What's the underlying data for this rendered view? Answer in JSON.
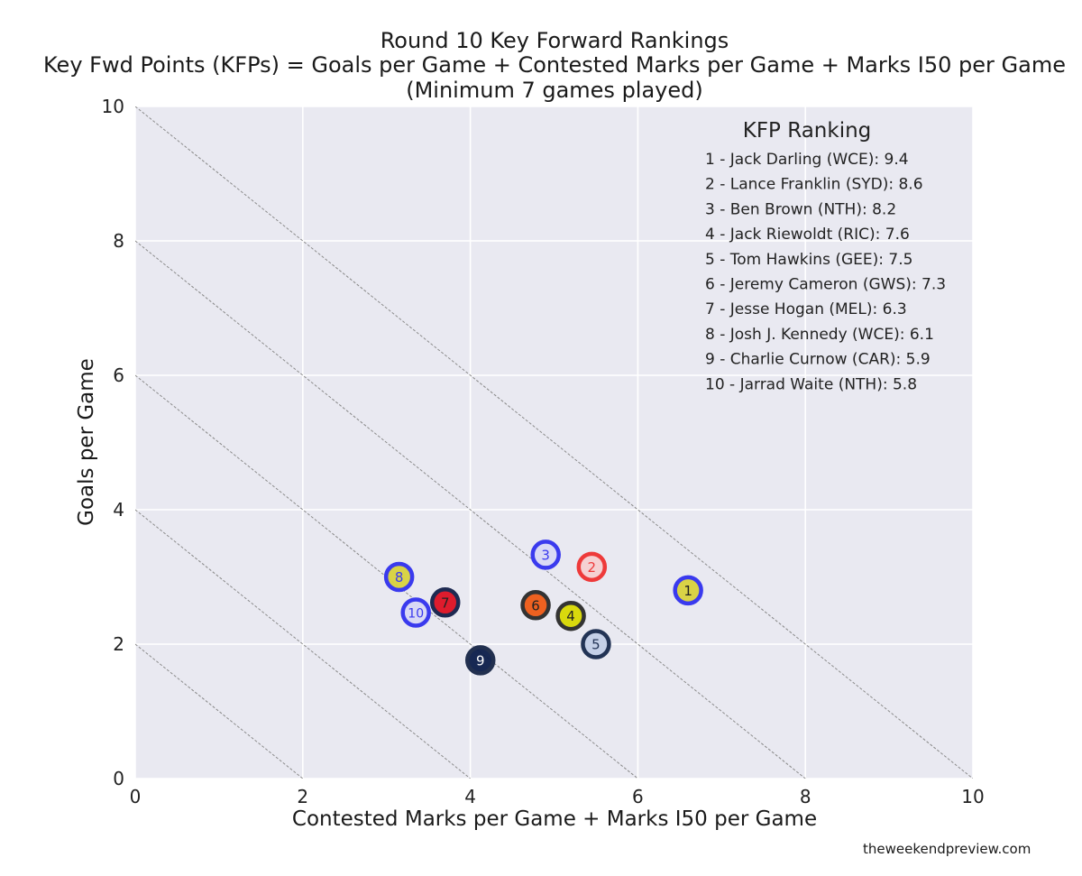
{
  "title": {
    "line1": "Round 10 Key Forward Rankings",
    "line2": "Key Fwd Points (KFPs) = Goals per Game + Contested Marks per Game + Marks I50 per Game",
    "line3": "(Minimum 7 games played)"
  },
  "source": "theweekendpreview.com",
  "chart_data": {
    "type": "scatter",
    "xlabel": "Contested Marks per Game + Marks I50 per Game",
    "ylabel": "Goals per Game",
    "xlim": [
      0,
      10
    ],
    "ylim": [
      0,
      10
    ],
    "xticks": [
      "0",
      "2",
      "4",
      "6",
      "8",
      "10"
    ],
    "yticks": [
      "0",
      "2",
      "4",
      "6",
      "8",
      "10"
    ],
    "grid": true,
    "background": "#e9e9f1",
    "reference_lines": [
      2,
      4,
      6,
      8,
      10
    ],
    "legend": {
      "title": "KFP Ranking",
      "placement": "top-right",
      "entries": [
        "1 - Jack Darling (WCE): 9.4",
        "2 - Lance Franklin (SYD): 8.6",
        "3 - Ben Brown (NTH): 8.2",
        "4 - Jack Riewoldt (RIC): 7.6",
        "5 - Tom Hawkins (GEE): 7.5",
        "6 - Jeremy Cameron (GWS): 7.3",
        "7 - Jesse Hogan (MEL): 6.3",
        "8 - Josh J. Kennedy (WCE): 6.1",
        "9 - Charlie Curnow (CAR): 5.9",
        "10 - Jarrad Waite (NTH): 5.8"
      ]
    },
    "points": [
      {
        "rank": "1",
        "x": 6.6,
        "y": 2.8,
        "fill": "#d8d23c",
        "edge": "#3a3aee",
        "text": "#222222"
      },
      {
        "rank": "2",
        "x": 5.45,
        "y": 3.15,
        "fill": "#f6d0d0",
        "edge": "#ee3a3a",
        "text": "#ee3a3a"
      },
      {
        "rank": "3",
        "x": 4.9,
        "y": 3.33,
        "fill": "#d8d8f4",
        "edge": "#3a3aee",
        "text": "#3a3aee"
      },
      {
        "rank": "4",
        "x": 5.2,
        "y": 2.42,
        "fill": "#d8d800",
        "edge": "#333333",
        "text": "#222222"
      },
      {
        "rank": "5",
        "x": 5.5,
        "y": 2.0,
        "fill": "#c2cde6",
        "edge": "#223355",
        "text": "#223355"
      },
      {
        "rank": "6",
        "x": 4.78,
        "y": 2.58,
        "fill": "#ee5a14",
        "edge": "#333333",
        "text": "#222222"
      },
      {
        "rank": "7",
        "x": 3.7,
        "y": 2.62,
        "fill": "#dd1122",
        "edge": "#1e2a52",
        "text": "#222222"
      },
      {
        "rank": "8",
        "x": 3.15,
        "y": 3.0,
        "fill": "#d8d23c",
        "edge": "#3a3aee",
        "text": "#3a3aee"
      },
      {
        "rank": "9",
        "x": 4.12,
        "y": 1.76,
        "fill": "#0c1e4a",
        "edge": "#22304f",
        "text": "#ffffff"
      },
      {
        "rank": "10",
        "x": 3.35,
        "y": 2.47,
        "fill": "#d8d8f4",
        "edge": "#3a3aee",
        "text": "#3a3aee"
      }
    ]
  }
}
